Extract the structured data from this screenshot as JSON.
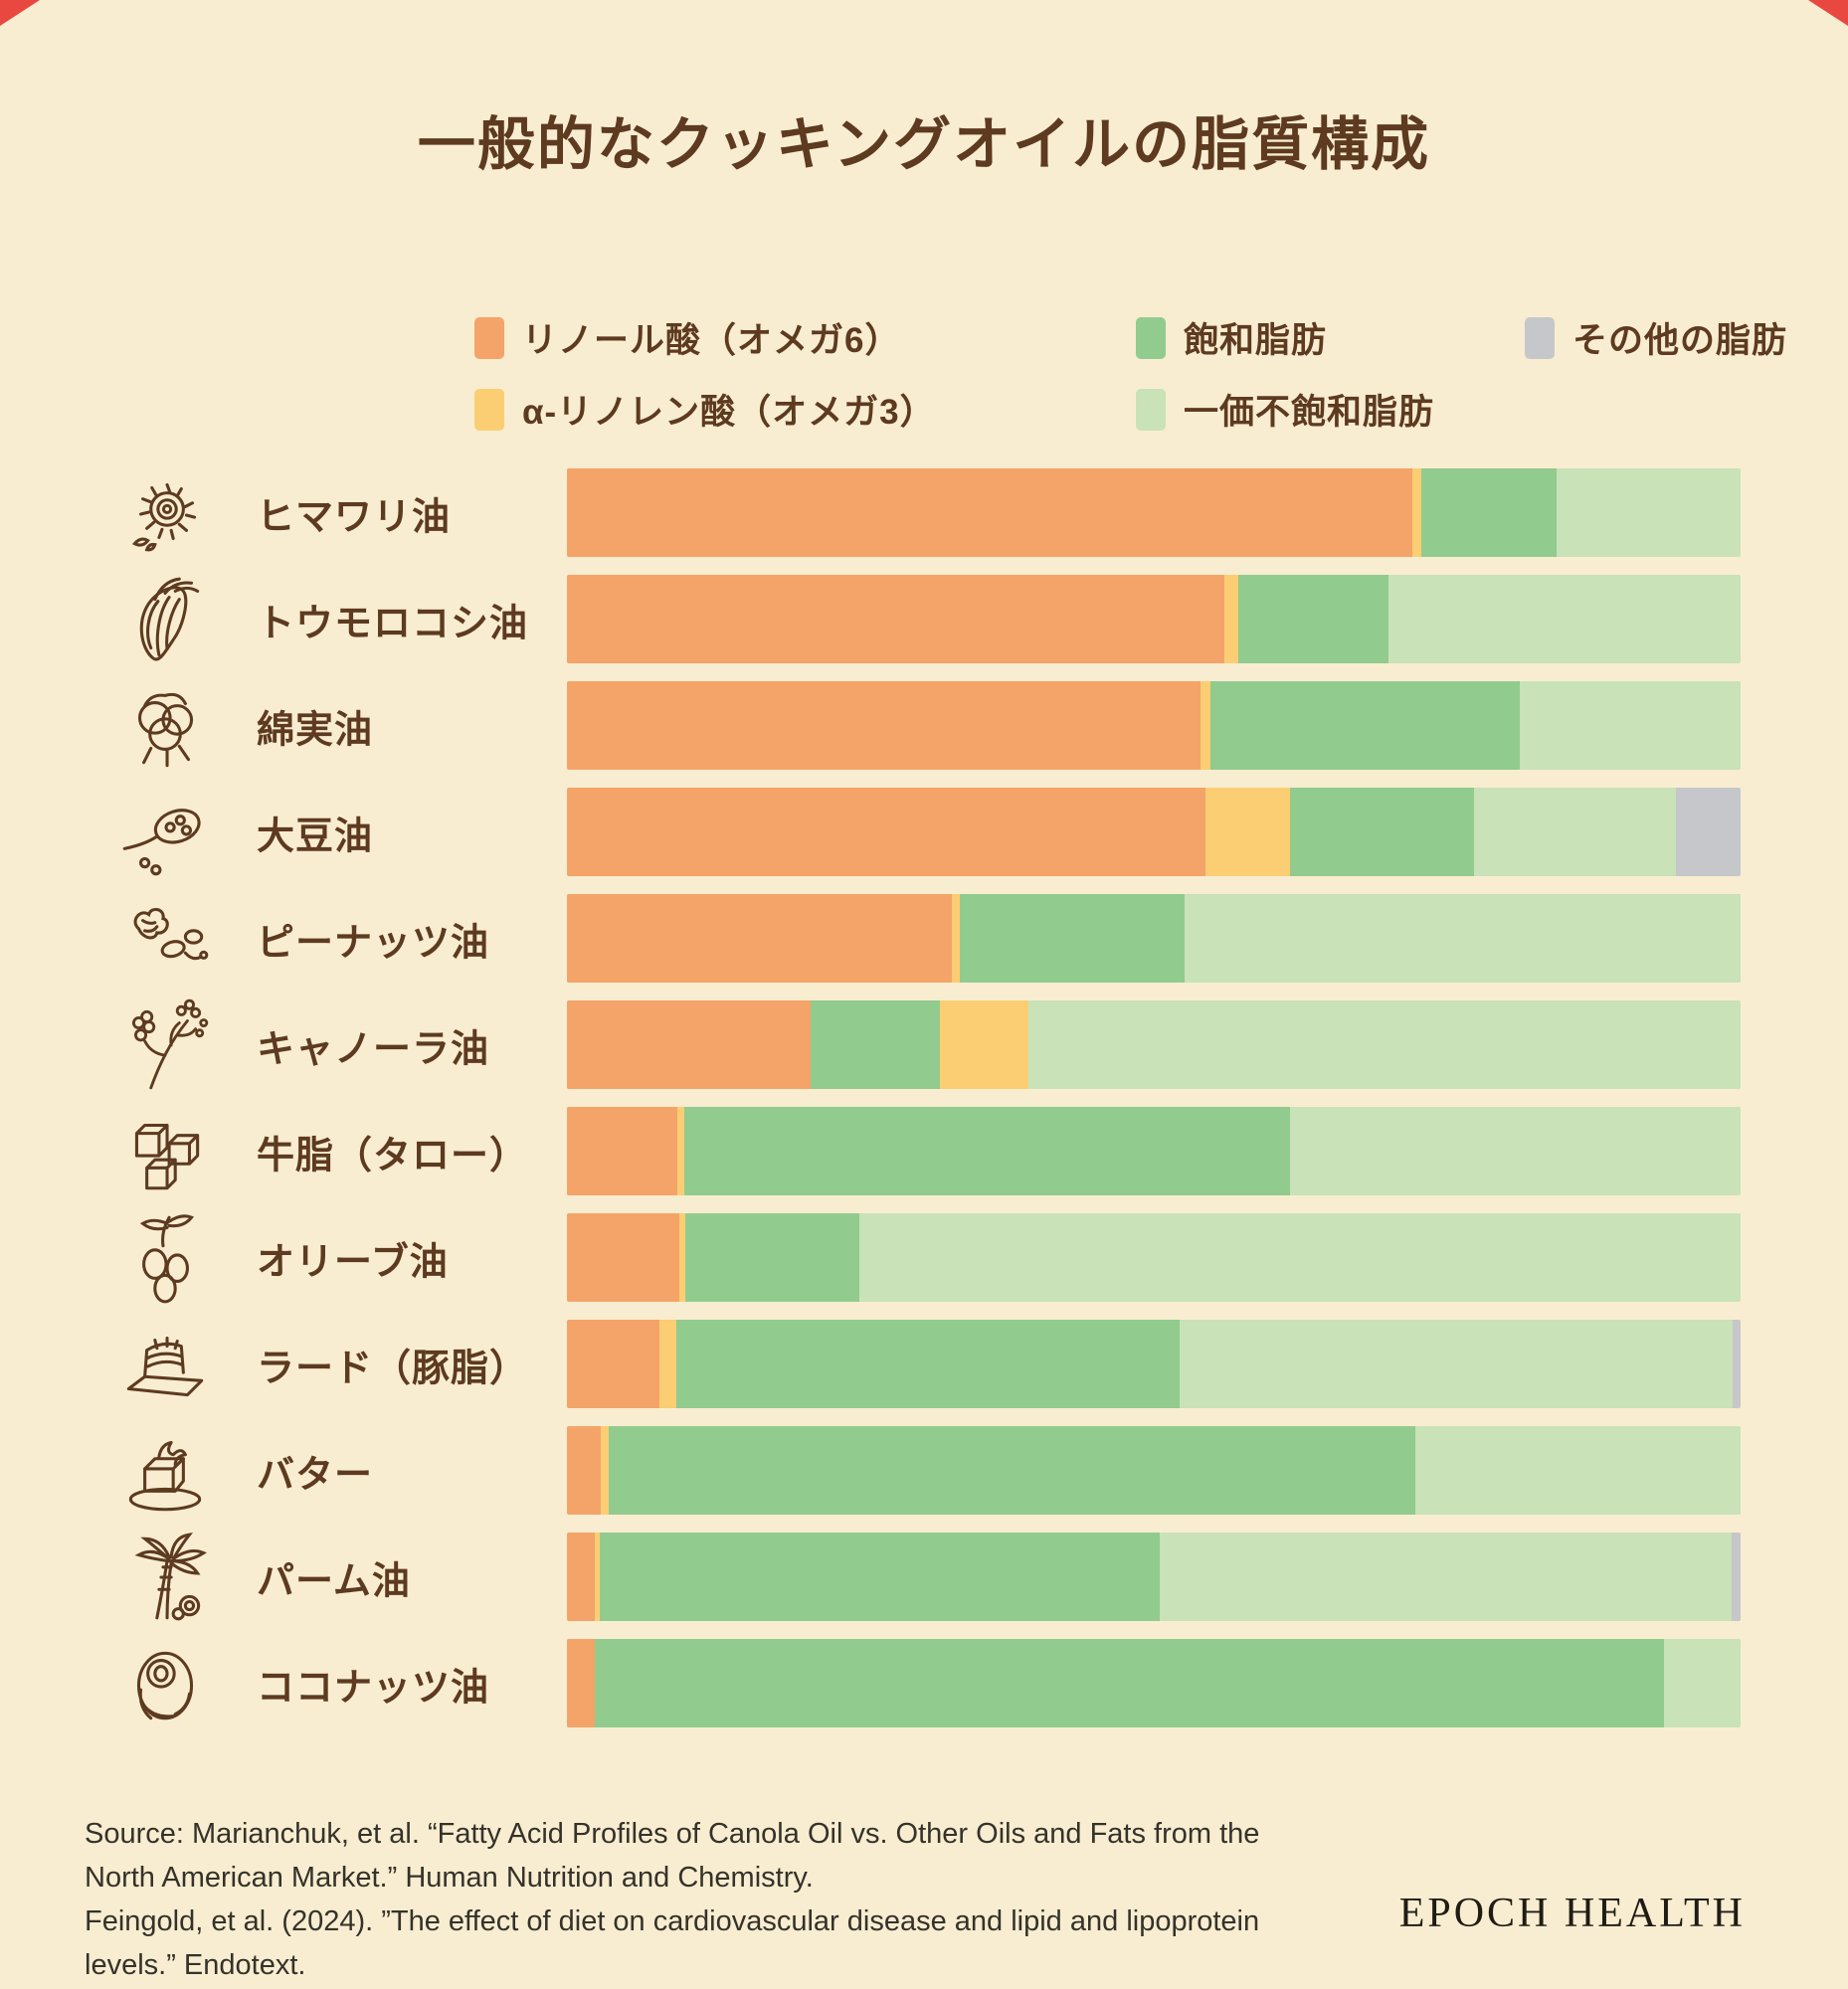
{
  "title": "一般的なクッキングオイルの脂質構成",
  "colors": {
    "background": "#F8EDD0",
    "omega6": "#F4A469",
    "omega3": "#FBCE74",
    "sat": "#92CB8E",
    "mono": "#C9E2B8",
    "other": "#C5C7CB",
    "heading_brown": "#5D3A20",
    "source_text": "#35322B",
    "logo_text": "#201C15",
    "corner_red": "#E8483F"
  },
  "legend": {
    "rows": [
      [
        {
          "key": "omega6",
          "label": "リノール酸（オメガ6）"
        },
        {
          "key": "sat",
          "label": "飽和脂肪"
        },
        {
          "key": "other",
          "label": "その他の脂肪"
        }
      ],
      [
        {
          "key": "omega3",
          "label": "α-リノレン酸（オメガ3）"
        },
        {
          "key": "mono",
          "label": "一価不飽和脂肪"
        }
      ]
    ]
  },
  "chart_data": {
    "type": "bar",
    "orientation": "horizontal",
    "stacked": true,
    "unit": "percent",
    "xlim": [
      0,
      100
    ],
    "series_keys": {
      "omega6": "リノール酸（オメガ6）",
      "omega3": "α-リノレン酸（オメガ3）",
      "sat": "飽和脂肪",
      "mono": "一価不飽和脂肪",
      "other": "その他の脂肪"
    },
    "categories": [
      "ヒマワリ油",
      "トウモロコシ油",
      "綿実油",
      "大豆油",
      "ピーナッツ油",
      "キャノーラ油",
      "牛脂（タロー）",
      "オリーブ油",
      "ラード（豚脂）",
      "バター",
      "パーム油",
      "ココナッツ油"
    ],
    "rows": [
      {
        "label": "ヒマワリ油",
        "icon": "sunflower",
        "segments": [
          {
            "key": "omega6",
            "value": 72.0
          },
          {
            "key": "omega3",
            "value": 0.8
          },
          {
            "key": "sat",
            "value": 11.5
          },
          {
            "key": "mono",
            "value": 15.7
          }
        ]
      },
      {
        "label": "トウモロコシ油",
        "icon": "corn",
        "segments": [
          {
            "key": "omega6",
            "value": 56.0
          },
          {
            "key": "omega3",
            "value": 1.2
          },
          {
            "key": "sat",
            "value": 12.8
          },
          {
            "key": "mono",
            "value": 30.0
          }
        ]
      },
      {
        "label": "綿実油",
        "icon": "cotton",
        "segments": [
          {
            "key": "omega6",
            "value": 54.0
          },
          {
            "key": "omega3",
            "value": 0.8
          },
          {
            "key": "sat",
            "value": 26.4
          },
          {
            "key": "mono",
            "value": 18.8
          }
        ]
      },
      {
        "label": "大豆油",
        "icon": "soybean",
        "segments": [
          {
            "key": "omega6",
            "value": 54.4
          },
          {
            "key": "omega3",
            "value": 7.2
          },
          {
            "key": "sat",
            "value": 15.7
          },
          {
            "key": "mono",
            "value": 17.2
          },
          {
            "key": "other",
            "value": 5.5
          }
        ]
      },
      {
        "label": "ピーナッツ油",
        "icon": "peanut",
        "segments": [
          {
            "key": "omega6",
            "value": 32.8
          },
          {
            "key": "omega3",
            "value": 0.7
          },
          {
            "key": "sat",
            "value": 19.1
          },
          {
            "key": "mono",
            "value": 47.4
          }
        ]
      },
      {
        "label": "キャノーラ油",
        "icon": "canola",
        "segments": [
          {
            "key": "omega6",
            "value": 20.8
          },
          {
            "key": "sat",
            "value": 11.0
          },
          {
            "key": "omega3",
            "value": 7.5
          },
          {
            "key": "mono",
            "value": 60.7
          }
        ]
      },
      {
        "label": "牛脂（タロー）",
        "icon": "tallow",
        "segments": [
          {
            "key": "omega6",
            "value": 9.4
          },
          {
            "key": "omega3",
            "value": 0.6
          },
          {
            "key": "sat",
            "value": 51.6
          },
          {
            "key": "mono",
            "value": 38.4
          }
        ]
      },
      {
        "label": "オリーブ油",
        "icon": "olive",
        "segments": [
          {
            "key": "omega6",
            "value": 9.6
          },
          {
            "key": "omega3",
            "value": 0.5
          },
          {
            "key": "sat",
            "value": 14.8
          },
          {
            "key": "mono",
            "value": 75.1
          }
        ]
      },
      {
        "label": "ラード（豚脂）",
        "icon": "lard",
        "segments": [
          {
            "key": "omega6",
            "value": 7.9
          },
          {
            "key": "omega3",
            "value": 1.4
          },
          {
            "key": "sat",
            "value": 42.9
          },
          {
            "key": "mono",
            "value": 47.1
          },
          {
            "key": "other",
            "value": 0.7
          }
        ]
      },
      {
        "label": "バター",
        "icon": "butter",
        "segments": [
          {
            "key": "omega6",
            "value": 2.9
          },
          {
            "key": "omega3",
            "value": 0.7
          },
          {
            "key": "sat",
            "value": 68.7
          },
          {
            "key": "mono",
            "value": 27.7
          }
        ]
      },
      {
        "label": "パーム油",
        "icon": "palm",
        "segments": [
          {
            "key": "omega6",
            "value": 2.4
          },
          {
            "key": "omega3",
            "value": 0.4
          },
          {
            "key": "sat",
            "value": 47.7
          },
          {
            "key": "mono",
            "value": 48.7
          },
          {
            "key": "other",
            "value": 0.8
          }
        ]
      },
      {
        "label": "ココナッツ油",
        "icon": "coconut",
        "segments": [
          {
            "key": "omega6",
            "value": 2.4
          },
          {
            "key": "sat",
            "value": 91.1
          },
          {
            "key": "mono",
            "value": 6.5
          }
        ]
      }
    ]
  },
  "source": {
    "lines": [
      "Source: Marianchuk, et al. “Fatty Acid Profiles of Canola Oil vs. Other Oils and Fats from the",
      "North American Market.” Human Nutrition and Chemistry.",
      "Feingold, et al. (2024). ”The effect of diet on cardiovascular disease and lipid and lipoprotein",
      "levels.” Endotext."
    ]
  },
  "logo": "EPOCH HEALTH"
}
